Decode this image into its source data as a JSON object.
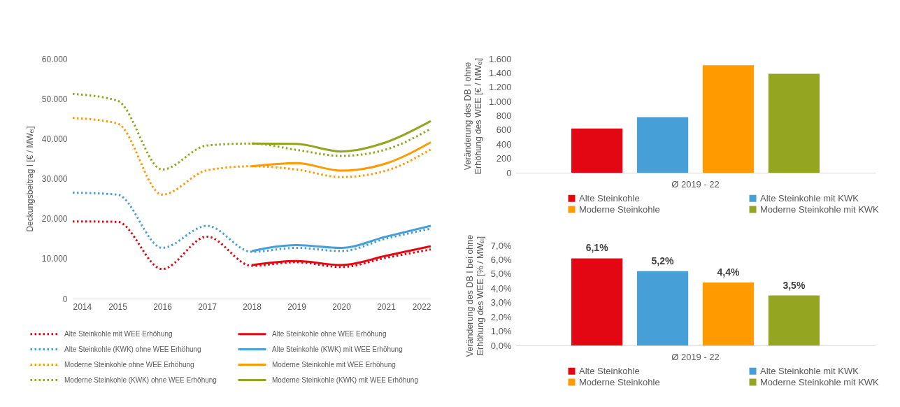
{
  "chart_data": [
    {
      "type": "line",
      "ylabel": "Deckungsbeitrag I [€ / MWₑₗ]",
      "xlim": [
        2014,
        2022
      ],
      "xticks": [
        2014,
        2015,
        2016,
        2017,
        2018,
        2019,
        2020,
        2021,
        2022
      ],
      "ylim": [
        0,
        60000
      ],
      "yticks": [
        0,
        {
          "value": 10000,
          "label": "10.000"
        },
        {
          "value": 20000,
          "label": "20.000"
        },
        {
          "value": 30000,
          "label": "30.000"
        },
        {
          "value": 40000,
          "label": "40.000"
        },
        {
          "value": 50000,
          "label": "50.000"
        },
        {
          "value": 60000,
          "label": "60.000"
        }
      ],
      "legend": "bottom",
      "series": [
        {
          "name": "Alte Steinkohle mit WEE Erhöhung",
          "color": "#e30613",
          "line_style": "dotted",
          "x": [
            2014,
            2015,
            2016,
            2017,
            2018,
            2019,
            2020,
            2021,
            2022
          ],
          "values": [
            19300,
            19200,
            7400,
            15500,
            8200,
            9100,
            7900,
            10200,
            12300
          ]
        },
        {
          "name": "Alte Steinkohle ohne WEE Erhöhung",
          "color": "#e30613",
          "line_style": "solid",
          "x": [
            2018,
            2019,
            2020,
            2021,
            2022
          ],
          "values": [
            8400,
            9400,
            8400,
            10700,
            13100
          ]
        },
        {
          "name": "Alte Steinkohle (KWK) ohne WEE Erhöhung",
          "color": "#479fd7",
          "line_style": "dotted",
          "x": [
            2014,
            2015,
            2016,
            2017,
            2018,
            2019,
            2020,
            2021,
            2022
          ],
          "values": [
            26500,
            26000,
            12700,
            18200,
            11700,
            12700,
            11900,
            15000,
            17500
          ]
        },
        {
          "name": "Alte Steinkohle (KWK) mit WEE Erhöhung",
          "color": "#479fd7",
          "line_style": "solid",
          "x": [
            2018,
            2019,
            2020,
            2021,
            2022
          ],
          "values": [
            11900,
            13400,
            12700,
            15500,
            18200
          ]
        },
        {
          "name": "Moderne Steinkohle ohne WEE Erhöhung",
          "color": "#ff9a00",
          "line_style": "dotted",
          "x": [
            2014,
            2015,
            2016,
            2017,
            2018,
            2019,
            2020,
            2021,
            2022
          ],
          "values": [
            45200,
            43800,
            26000,
            32100,
            33100,
            32300,
            30400,
            32000,
            37300
          ]
        },
        {
          "name": "Moderne Steinkohle mit WEE Erhöhung",
          "color": "#ff9a00",
          "line_style": "solid",
          "x": [
            2018,
            2019,
            2020,
            2021,
            2022
          ],
          "values": [
            33100,
            33900,
            32000,
            33800,
            39100
          ]
        },
        {
          "name": "Moderne Steinkohle (KWK) ohne WEE Erhöhung",
          "color": "#93a521",
          "line_style": "dotted",
          "x": [
            2014,
            2015,
            2016,
            2017,
            2018,
            2019,
            2020,
            2021,
            2022
          ],
          "values": [
            51200,
            49500,
            32300,
            38300,
            38800,
            37200,
            35700,
            37300,
            42500
          ]
        },
        {
          "name": "Moderne Steinkohle (KWK) mit WEE Erhöhung",
          "color": "#93a521",
          "line_style": "solid",
          "x": [
            2018,
            2019,
            2020,
            2021,
            2022
          ],
          "values": [
            38800,
            38700,
            36800,
            39100,
            44400
          ]
        }
      ]
    },
    {
      "type": "bar",
      "ylabel": "Veränderung des DB I ohne\nErhöhung des WEE [€ / MWₑₗ]",
      "categories": [
        "Ø 2019 - 22"
      ],
      "ylim": [
        0,
        1600
      ],
      "yticks": [
        0,
        200,
        400,
        600,
        800,
        {
          "value": 1000,
          "label": "1.000"
        },
        {
          "value": 1200,
          "label": "1.200"
        },
        {
          "value": 1400,
          "label": "1.400"
        },
        {
          "value": 1600,
          "label": "1.600"
        }
      ],
      "legend": "bottom",
      "series": [
        {
          "name": "Alte Steinkohle",
          "color": "#e30613",
          "values": [
            620
          ]
        },
        {
          "name": "Alte Steinkohle mit KWK",
          "color": "#479fd7",
          "values": [
            780
          ]
        },
        {
          "name": "Moderne Steinkohle",
          "color": "#ff9a00",
          "values": [
            1510
          ]
        },
        {
          "name": "Moderne Steinkohle mit KWK",
          "color": "#93a521",
          "values": [
            1390
          ]
        }
      ]
    },
    {
      "type": "bar",
      "ylabel": "Veränderung des DB I bei ohne\nErhöhung des WEE [% / MWₑₗ]",
      "categories": [
        "Ø 2019 - 22"
      ],
      "ylim": [
        0,
        7
      ],
      "yticks": [
        {
          "value": 0,
          "label": "0,0%"
        },
        {
          "value": 1,
          "label": "1,0%"
        },
        {
          "value": 2,
          "label": "2,0%"
        },
        {
          "value": 3,
          "label": "3,0%"
        },
        {
          "value": 4,
          "label": "4,0%"
        },
        {
          "value": 5,
          "label": "5,0%"
        },
        {
          "value": 6,
          "label": "6,0%"
        },
        {
          "value": 7,
          "label": "7,0%"
        }
      ],
      "legend": "bottom",
      "series": [
        {
          "name": "Alte Steinkohle",
          "color": "#e30613",
          "values": [
            6.1
          ],
          "value_labels": [
            "6,1%"
          ]
        },
        {
          "name": "Alte Steinkohle mit KWK",
          "color": "#479fd7",
          "values": [
            5.2
          ],
          "value_labels": [
            "5,2%"
          ]
        },
        {
          "name": "Moderne Steinkohle",
          "color": "#ff9a00",
          "values": [
            4.4
          ],
          "value_labels": [
            "4,4%"
          ]
        },
        {
          "name": "Moderne Steinkohle mit KWK",
          "color": "#93a521",
          "values": [
            3.5
          ],
          "value_labels": [
            "3,5%"
          ]
        }
      ]
    }
  ]
}
